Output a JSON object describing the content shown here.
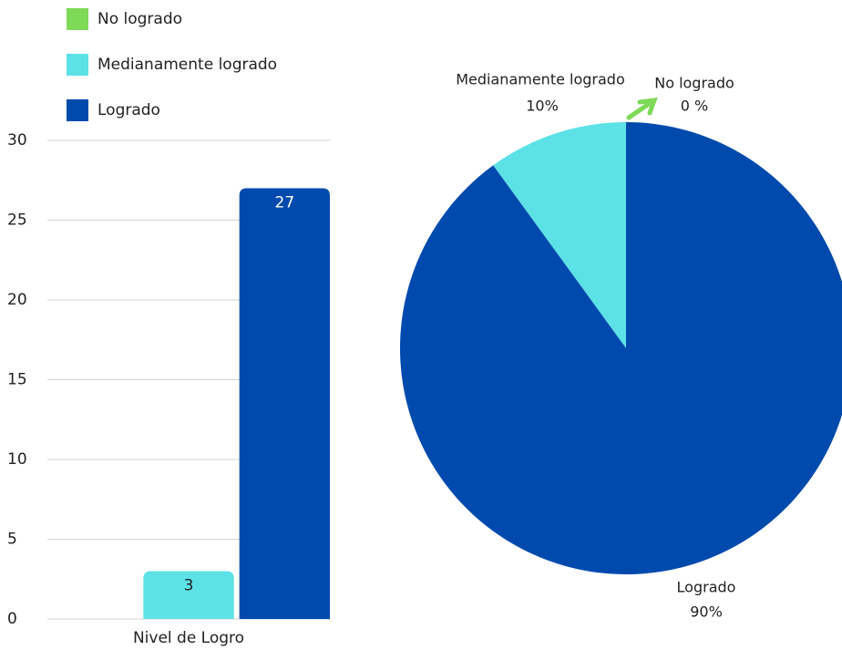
{
  "chart_data": [
    {
      "type": "bar",
      "categories": [
        "Nivel de Logro"
      ],
      "series": [
        {
          "name": "No logrado",
          "color": "#7ed957",
          "values": [
            0
          ]
        },
        {
          "name": "Medianamente logrado",
          "color": "#5ce1e6",
          "values": [
            3
          ]
        },
        {
          "name": "Logrado",
          "color": "#004aad",
          "values": [
            27
          ]
        }
      ],
      "ylim": [
        0,
        30
      ],
      "yticks": [
        0,
        5,
        10,
        15,
        20,
        25,
        30
      ],
      "grid": true,
      "legend": "top-left"
    },
    {
      "type": "pie",
      "categories": [
        "No logrado",
        "Medianamente logrado",
        "Logrado"
      ],
      "values": [
        0,
        10,
        90
      ],
      "value_labels": [
        "0 %",
        "10%",
        "90%"
      ],
      "colors": [
        "#7ed957",
        "#5ce1e6",
        "#004aad"
      ]
    }
  ]
}
